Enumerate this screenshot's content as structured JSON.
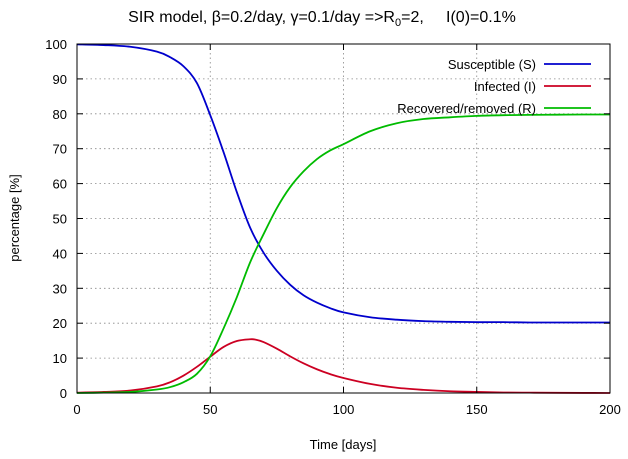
{
  "chart_data": {
    "type": "line",
    "title": "SIR model, β=0.2/day, γ=0.1/day =>R",
    "title_sub": "0",
    "title_tail": "=2,     I(0)=0.1%",
    "xlabel": "Time [days]",
    "ylabel": "percentage [%]",
    "xlim": [
      0,
      200
    ],
    "ylim": [
      0,
      100
    ],
    "xticks": [
      0,
      50,
      100,
      150,
      200
    ],
    "yticks": [
      0,
      10,
      20,
      30,
      40,
      50,
      60,
      70,
      80,
      90,
      100
    ],
    "grid": true,
    "legend_position": "top-right",
    "series": [
      {
        "name": "Susceptible (S)",
        "color": "#0000cc",
        "x": [
          0,
          10,
          20,
          30,
          35,
          40,
          45,
          50,
          55,
          60,
          65,
          70,
          75,
          80,
          85,
          90,
          95,
          100,
          110,
          120,
          130,
          140,
          150,
          160,
          170,
          180,
          190,
          200
        ],
        "y": [
          99.9,
          99.7,
          99.2,
          97.8,
          96.2,
          93.6,
          88.8,
          79.6,
          69.0,
          57.5,
          47.3,
          40.2,
          35.0,
          31.0,
          28.0,
          25.9,
          24.3,
          23.1,
          21.7,
          21.0,
          20.6,
          20.4,
          20.3,
          20.3,
          20.2,
          20.2,
          20.2,
          20.2
        ]
      },
      {
        "name": "Infected (I)",
        "color": "#cc0022",
        "x": [
          0,
          10,
          20,
          30,
          35,
          40,
          45,
          50,
          55,
          60,
          65,
          67,
          70,
          75,
          80,
          85,
          90,
          95,
          100,
          110,
          120,
          130,
          140,
          150,
          160,
          170,
          180,
          190,
          200
        ],
        "y": [
          0.1,
          0.3,
          0.7,
          1.9,
          3.1,
          5.0,
          7.5,
          10.4,
          13.2,
          14.9,
          15.4,
          15.3,
          14.6,
          12.7,
          10.5,
          8.5,
          6.8,
          5.4,
          4.3,
          2.6,
          1.5,
          0.9,
          0.5,
          0.3,
          0.15,
          0.1,
          0.05,
          0.02,
          0.01
        ]
      },
      {
        "name": "Recovered/removed (R)",
        "color": "#00bb00",
        "x": [
          0,
          10,
          20,
          30,
          35,
          40,
          45,
          50,
          55,
          60,
          65,
          70,
          75,
          80,
          85,
          90,
          95,
          100,
          110,
          120,
          130,
          140,
          150,
          160,
          170,
          180,
          190,
          200
        ],
        "y": [
          0.0,
          0.1,
          0.3,
          1.0,
          1.7,
          3.1,
          5.5,
          10.5,
          18.5,
          27.5,
          37.5,
          45.5,
          53.0,
          59.0,
          63.5,
          67.0,
          69.5,
          71.3,
          75.0,
          77.3,
          78.5,
          79.0,
          79.4,
          79.6,
          79.7,
          79.75,
          79.8,
          79.8
        ]
      }
    ]
  }
}
